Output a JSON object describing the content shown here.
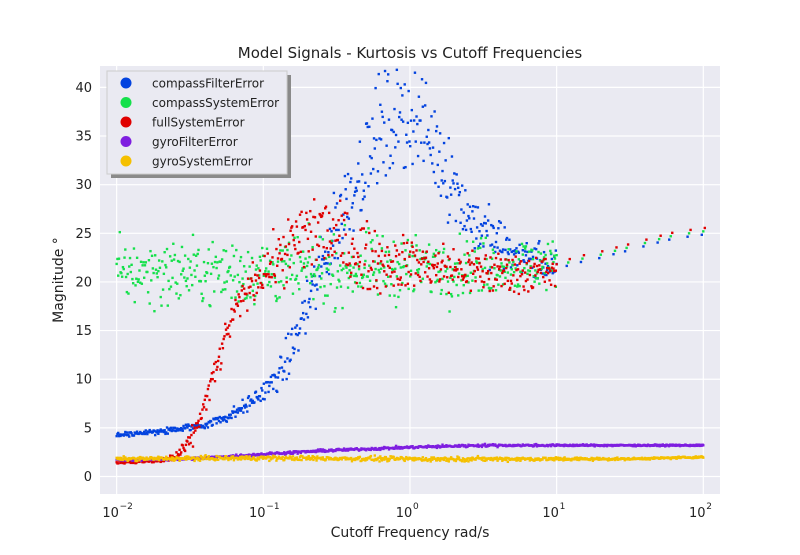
{
  "chart_data": {
    "type": "scatter",
    "title": "Model Signals - Kurtosis vs Cutoff Frequencies",
    "xlabel": "Cutoff Frequency rad/s",
    "ylabel": "Magnitude °",
    "xscale": "log",
    "xlim": [
      0.0077,
      130
    ],
    "ylim": [
      -1.8,
      42.2
    ],
    "xticks": [
      {
        "value": 0.01,
        "base": "10",
        "exp": "−2"
      },
      {
        "value": 0.1,
        "base": "10",
        "exp": "−1"
      },
      {
        "value": 1,
        "base": "10",
        "exp": "0"
      },
      {
        "value": 10,
        "base": "10",
        "exp": "1"
      },
      {
        "value": 100,
        "base": "10",
        "exp": "2"
      }
    ],
    "yticks": [
      "0",
      "5",
      "10",
      "15",
      "20",
      "25",
      "30",
      "35",
      "40"
    ],
    "grid": true,
    "background": "#eaeaf2",
    "legend": {
      "position": "top-left",
      "shadow": true
    },
    "series": [
      {
        "name": "compassFilterError",
        "color": "#0343df",
        "x": [
          0.01,
          0.02,
          0.04,
          0.06,
          0.08,
          0.1,
          0.13,
          0.16,
          0.2,
          0.25,
          0.3,
          0.4,
          0.5,
          0.6,
          0.8,
          1.0,
          1.2,
          1.6,
          2.0,
          2.5,
          3.0,
          4.0,
          5.0,
          6.0,
          8.0,
          10.0
        ],
        "y": [
          4.3,
          4.6,
          5.3,
          6.3,
          7.5,
          8.7,
          10.5,
          13.5,
          17.5,
          21.5,
          25.0,
          29.5,
          32.5,
          35.0,
          36.5,
          37.0,
          36.0,
          33.0,
          30.0,
          27.0,
          25.5,
          24.0,
          23.0,
          22.5,
          22.0,
          21.5
        ],
        "spread": [
          0.15,
          0.15,
          0.2,
          0.3,
          0.4,
          0.5,
          0.8,
          1.2,
          1.5,
          1.8,
          2.0,
          2.2,
          2.5,
          2.8,
          2.5,
          2.5,
          2.5,
          2.5,
          2.0,
          1.8,
          1.5,
          1.3,
          1.2,
          1.0,
          1.0,
          1.0
        ]
      },
      {
        "name": "compassSystemError",
        "color": "#15e04b",
        "x": [
          0.01,
          0.1,
          1.0,
          10.0
        ],
        "y": [
          21.0,
          21.0,
          21.5,
          21.8
        ],
        "spread": [
          1.6,
          1.7,
          1.6,
          1.3
        ]
      },
      {
        "name": "fullSystemError",
        "color": "#e00000",
        "x": [
          0.01,
          0.02,
          0.025,
          0.03,
          0.035,
          0.04,
          0.05,
          0.06,
          0.08,
          0.1,
          0.13,
          0.17,
          0.2,
          0.25,
          0.3,
          0.4,
          0.5,
          0.7,
          1.0,
          1.5,
          2.0,
          3.0,
          5.0,
          10.0
        ],
        "y": [
          1.5,
          1.6,
          2.0,
          3.0,
          5.0,
          7.5,
          12.0,
          16.0,
          19.5,
          21.0,
          22.5,
          24.0,
          25.0,
          25.5,
          24.5,
          23.5,
          22.5,
          22.0,
          22.0,
          21.5,
          21.3,
          21.0,
          21.0,
          21.0
        ],
        "spread": [
          0.1,
          0.1,
          0.3,
          0.4,
          0.5,
          0.6,
          0.8,
          0.8,
          0.9,
          1.0,
          1.3,
          2.0,
          2.3,
          2.3,
          2.0,
          1.8,
          1.6,
          1.4,
          1.3,
          1.3,
          1.2,
          1.2,
          1.1,
          1.0
        ]
      },
      {
        "name": "gyroFilterError",
        "color": "#7e1ee0",
        "x": [
          0.01,
          0.03,
          0.05,
          0.1,
          0.3,
          1.0,
          3.0,
          10.0,
          30.0,
          100.0
        ],
        "y": [
          1.7,
          1.8,
          2.0,
          2.3,
          2.7,
          3.0,
          3.2,
          3.2,
          3.2,
          3.2
        ],
        "spread": [
          0.05,
          0.06,
          0.06,
          0.07,
          0.07,
          0.07,
          0.07,
          0.05,
          0.04,
          0.04
        ]
      },
      {
        "name": "gyroSystemError",
        "color": "#f5c000",
        "x": [
          0.01,
          0.1,
          1.0,
          10.0,
          30.0,
          100.0
        ],
        "y": [
          1.8,
          1.9,
          1.8,
          1.8,
          1.8,
          2.0
        ],
        "spread": [
          0.1,
          0.12,
          0.12,
          0.1,
          0.05,
          0.05
        ]
      }
    ],
    "tail_markers": {
      "x": [
        12,
        15,
        20,
        25,
        30,
        40,
        50,
        60,
        80,
        100
      ],
      "y": [
        22.0,
        22.4,
        22.8,
        23.2,
        23.5,
        24.0,
        24.4,
        24.7,
        25.0,
        25.2
      ]
    }
  }
}
